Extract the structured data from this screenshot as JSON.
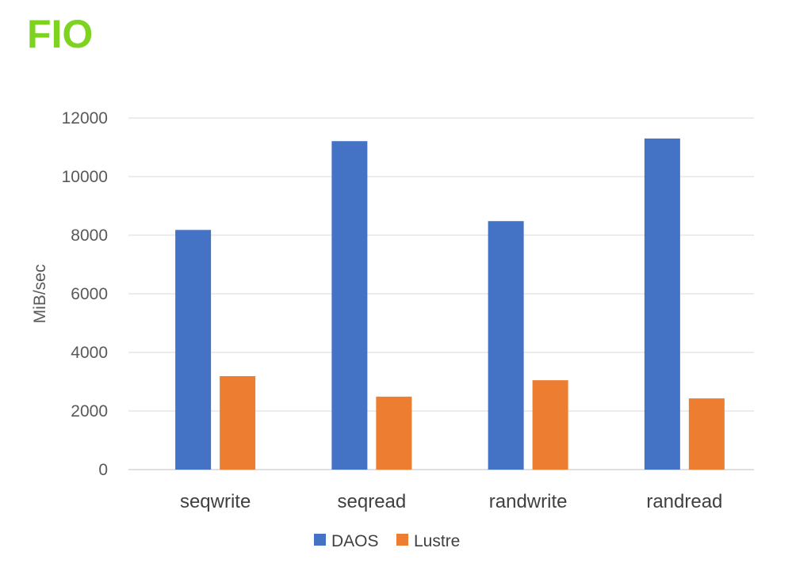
{
  "slide": {
    "title": "FIO",
    "title_color": "#7ed321"
  },
  "chart_data": {
    "type": "bar",
    "title": "",
    "xlabel": "",
    "ylabel": "MiB/sec",
    "categories": [
      "seqwrite",
      "seqread",
      "randwrite",
      "randread"
    ],
    "series": [
      {
        "name": "DAOS",
        "color": "#4472c4",
        "values": [
          8180,
          11210,
          8480,
          11300
        ]
      },
      {
        "name": "Lustre",
        "color": "#ed7d31",
        "values": [
          3190,
          2490,
          3050,
          2430
        ]
      }
    ],
    "ylim": [
      0,
      12000
    ],
    "yticks": [
      0,
      2000,
      4000,
      6000,
      8000,
      10000,
      12000
    ],
    "ytick_labels": [
      "0",
      "2000",
      "4000",
      "6000",
      "8000",
      "10000",
      "12000"
    ],
    "grid": true,
    "legend_position": "bottom"
  }
}
